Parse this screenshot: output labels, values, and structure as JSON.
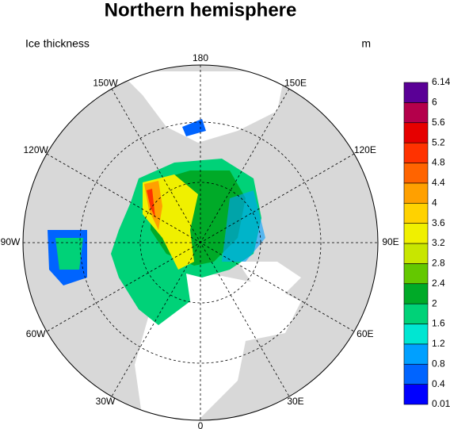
{
  "header": {
    "title": "Northern hemisphere",
    "left": "Ice thickness",
    "right": "m"
  },
  "map": {
    "lon_labels": [
      "180",
      "150E",
      "120E",
      "90E",
      "60E",
      "30E",
      "0",
      "30W",
      "60W",
      "90W",
      "120W",
      "150W"
    ]
  },
  "colorbar": {
    "levels": [
      0.01,
      0.4,
      0.8,
      1.2,
      1.6,
      2,
      2.4,
      2.8,
      3.2,
      3.6,
      4,
      4.4,
      4.8,
      5.2,
      5.6,
      6,
      6.14
    ],
    "colors": [
      "#0000ff",
      "#0064ff",
      "#00a0ff",
      "#00e6d2",
      "#00d278",
      "#00aa28",
      "#64c800",
      "#c8e600",
      "#f0f000",
      "#ffd200",
      "#ffa000",
      "#ff6400",
      "#ff3200",
      "#e60000",
      "#b4004b",
      "#5a0096"
    ]
  }
}
